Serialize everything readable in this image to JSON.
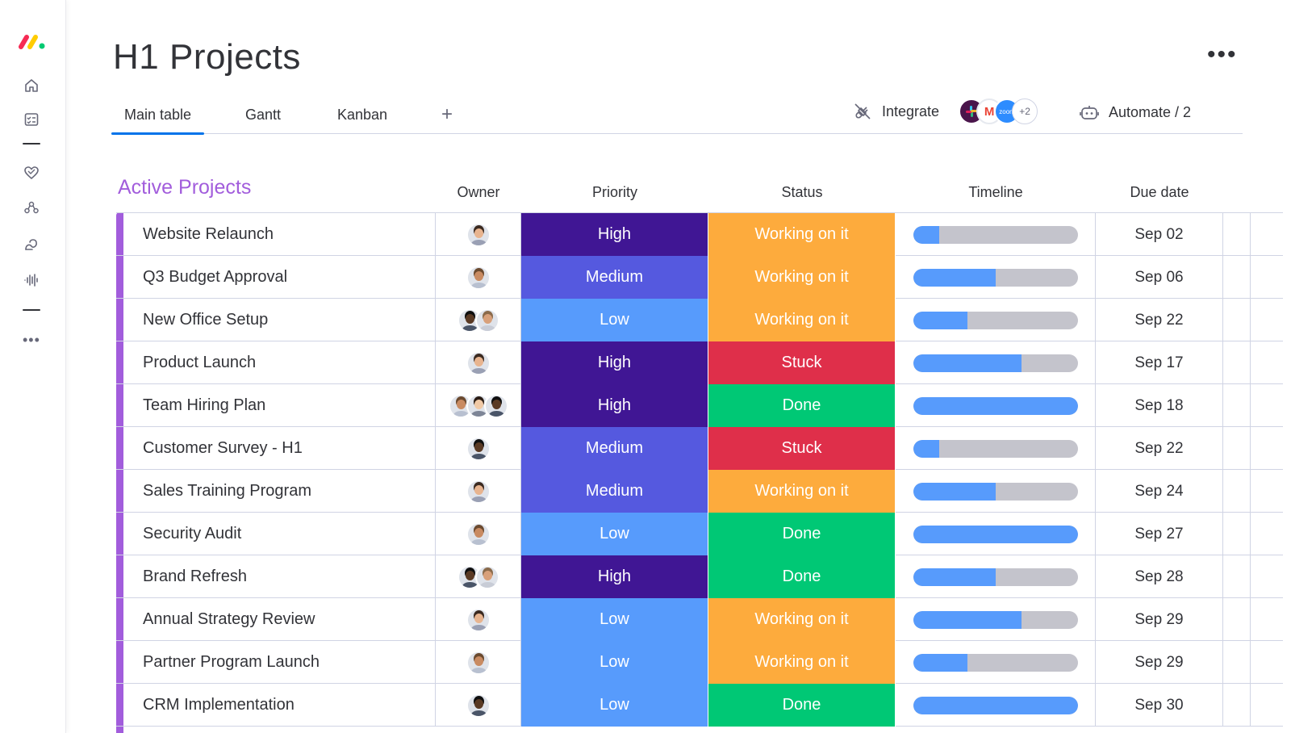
{
  "colors": {
    "accent": "#0073ea",
    "group": "#a25ddc",
    "priority": {
      "High": "#401694",
      "Medium": "#5559df",
      "Low": "#579bfc"
    },
    "status": {
      "Working on it": "#fdab3d",
      "Stuck": "#df2f4a",
      "Done": "#00c875"
    },
    "timeline_fill": "#579bfc",
    "timeline_track": "#c4c4cc"
  },
  "sidebar": {
    "icons": [
      "home-icon",
      "my-work-icon",
      "favorites-heart-icon",
      "teams-icon",
      "workflow-icon",
      "voice-waves-icon"
    ]
  },
  "header": {
    "title": "H1 Projects",
    "more_label": "•••"
  },
  "tabs": [
    {
      "label": "Main table",
      "active": true
    },
    {
      "label": "Gantt",
      "active": false
    },
    {
      "label": "Kanban",
      "active": false
    }
  ],
  "tab_add": "+",
  "integrate": {
    "label": "Integrate",
    "apps": [
      "slack-icon",
      "gmail-icon",
      "zoom-icon"
    ],
    "zoom_label": "zoom",
    "gmail_label": "M",
    "extra_count": "+2"
  },
  "automate": {
    "label": "Automate / 2"
  },
  "group": {
    "title": "Active Projects",
    "columns": {
      "owner": "Owner",
      "priority": "Priority",
      "status": "Status",
      "timeline": "Timeline",
      "due": "Due date"
    },
    "rows": [
      {
        "name": "Website Relaunch",
        "owners": 1,
        "priority": "High",
        "status": "Working on it",
        "timeline_progress": 0.16,
        "due": "Sep 02"
      },
      {
        "name": "Q3 Budget Approval",
        "owners": 1,
        "priority": "Medium",
        "status": "Working on it",
        "timeline_progress": 0.5,
        "due": "Sep 06"
      },
      {
        "name": "New Office Setup",
        "owners": 2,
        "priority": "Low",
        "status": "Working on it",
        "timeline_progress": 0.33,
        "due": "Sep 22"
      },
      {
        "name": "Product Launch",
        "owners": 1,
        "priority": "High",
        "status": "Stuck",
        "timeline_progress": 0.66,
        "due": "Sep 17"
      },
      {
        "name": "Team Hiring Plan",
        "owners": 3,
        "priority": "High",
        "status": "Done",
        "timeline_progress": 1.0,
        "due": "Sep 18"
      },
      {
        "name": "Customer Survey - H1",
        "owners": 1,
        "priority": "Medium",
        "status": "Stuck",
        "timeline_progress": 0.16,
        "due": "Sep 22"
      },
      {
        "name": "Sales Training Program",
        "owners": 1,
        "priority": "Medium",
        "status": "Working on it",
        "timeline_progress": 0.5,
        "due": "Sep 24"
      },
      {
        "name": "Security Audit",
        "owners": 1,
        "priority": "Low",
        "status": "Done",
        "timeline_progress": 1.0,
        "due": "Sep 27"
      },
      {
        "name": "Brand Refresh",
        "owners": 2,
        "priority": "High",
        "status": "Done",
        "timeline_progress": 0.5,
        "due": "Sep 28"
      },
      {
        "name": "Annual Strategy Review",
        "owners": 1,
        "priority": "Low",
        "status": "Working on it",
        "timeline_progress": 0.66,
        "due": "Sep 29"
      },
      {
        "name": "Partner Program Launch",
        "owners": 1,
        "priority": "Low",
        "status": "Working on it",
        "timeline_progress": 0.33,
        "due": "Sep 29"
      },
      {
        "name": "CRM Implementation",
        "owners": 1,
        "priority": "Low",
        "status": "Done",
        "timeline_progress": 1.0,
        "due": "Sep 30"
      }
    ]
  }
}
